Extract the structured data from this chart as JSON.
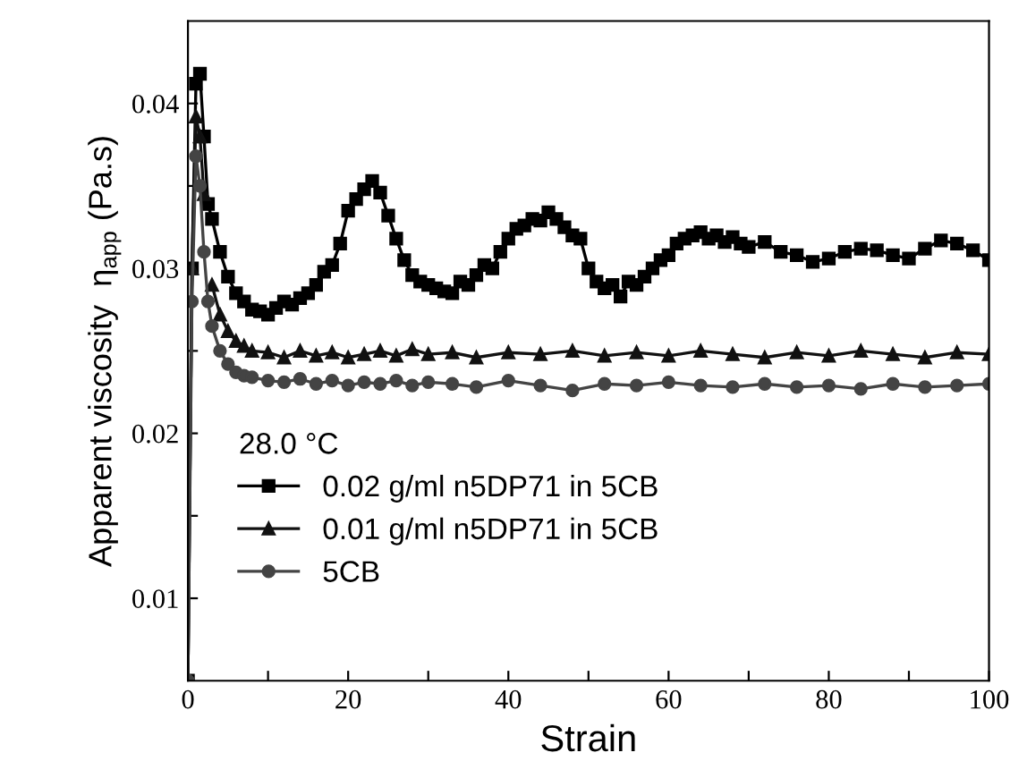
{
  "chart_data": {
    "type": "line",
    "xlabel": "Strain",
    "ylabel": "Apparent viscosity  η$_{app}$ (Pa.s)",
    "legend_title": "28.0 °C",
    "legend": "bottom left",
    "grid": false,
    "xlim": [
      0,
      100
    ],
    "xticks": [
      0,
      {
        "value": 10,
        "label": null
      },
      20,
      {
        "value": 30,
        "label": null
      },
      40,
      {
        "value": 50,
        "label": null
      },
      60,
      {
        "value": 70,
        "label": null
      },
      80,
      {
        "value": 90,
        "label": null
      },
      100
    ],
    "ylim": [
      0.005,
      0.045
    ],
    "yticks": [
      0.01,
      {
        "value": 0.015,
        "label": null
      },
      0.02,
      {
        "value": 0.025,
        "label": null
      },
      0.03,
      {
        "value": 0.035,
        "label": null
      },
      0.04
    ],
    "series": [
      {
        "name": "0.02 g/ml n5DP71 in 5CB",
        "color": "#000000",
        "marker": "square",
        "x": [
          0,
          0.5,
          1,
          1.5,
          2,
          2.5,
          3,
          4,
          5,
          6,
          7,
          8,
          9,
          10,
          11,
          12,
          13,
          14,
          15,
          16,
          17,
          18,
          19,
          20,
          21,
          22,
          23,
          24,
          25,
          26,
          27,
          28,
          29,
          30,
          31,
          32,
          33,
          34,
          35,
          36,
          37,
          38,
          39,
          40,
          41,
          42,
          43,
          44,
          45,
          46,
          47,
          48,
          49,
          50,
          51,
          52,
          53,
          54,
          55,
          56,
          57,
          58,
          59,
          60,
          61,
          62,
          63,
          64,
          65,
          66,
          67,
          68,
          69,
          70,
          72,
          74,
          76,
          78,
          80,
          82,
          84,
          86,
          88,
          90,
          92,
          94,
          96,
          98,
          100
        ],
        "values": [
          0.005,
          0.03,
          0.0412,
          0.0418,
          0.038,
          0.0339,
          0.033,
          0.031,
          0.0295,
          0.0285,
          0.028,
          0.0275,
          0.0274,
          0.0272,
          0.0276,
          0.028,
          0.0278,
          0.0282,
          0.0285,
          0.029,
          0.0298,
          0.0302,
          0.0315,
          0.0335,
          0.0342,
          0.0348,
          0.0353,
          0.0346,
          0.0332,
          0.0318,
          0.0305,
          0.0296,
          0.0292,
          0.029,
          0.0288,
          0.0286,
          0.0285,
          0.0292,
          0.029,
          0.0296,
          0.0302,
          0.03,
          0.031,
          0.0318,
          0.0324,
          0.0326,
          0.033,
          0.0329,
          0.0334,
          0.033,
          0.0325,
          0.032,
          0.0318,
          0.03,
          0.0292,
          0.0288,
          0.029,
          0.0283,
          0.0292,
          0.029,
          0.0295,
          0.03,
          0.0305,
          0.0308,
          0.0315,
          0.0318,
          0.032,
          0.0322,
          0.0318,
          0.032,
          0.0316,
          0.0319,
          0.0315,
          0.0313,
          0.0316,
          0.031,
          0.0308,
          0.0304,
          0.0306,
          0.031,
          0.0312,
          0.0311,
          0.0308,
          0.0306,
          0.0312,
          0.0317,
          0.0315,
          0.0311,
          0.0305
        ]
      },
      {
        "name": "0.01 g/ml n5DP71 in 5CB",
        "color": "#111111",
        "marker": "triangle",
        "x": [
          0,
          0.5,
          1,
          1.5,
          2,
          2.5,
          3,
          4,
          5,
          6,
          7,
          8,
          10,
          12,
          14,
          16,
          18,
          20,
          22,
          24,
          26,
          28,
          30,
          33,
          36,
          40,
          44,
          48,
          52,
          56,
          60,
          64,
          68,
          72,
          76,
          80,
          84,
          88,
          92,
          96,
          100
        ],
        "values": [
          0.005,
          0.03,
          0.0392,
          0.038,
          0.0345,
          null,
          0.029,
          0.0272,
          0.0262,
          0.0256,
          0.0253,
          0.025,
          0.0249,
          0.0246,
          0.025,
          0.0247,
          0.0249,
          0.0246,
          0.0248,
          0.025,
          0.0247,
          0.0251,
          0.0248,
          0.0249,
          0.0246,
          0.0249,
          0.0248,
          0.025,
          0.0247,
          0.0249,
          0.0247,
          0.025,
          0.0248,
          0.0246,
          0.0249,
          0.0247,
          0.025,
          0.0248,
          0.0246,
          0.0249,
          0.0248
        ]
      },
      {
        "name": "5CB",
        "color": "#444444",
        "marker": "circle",
        "x": [
          0,
          0.5,
          1,
          1.5,
          2,
          2.5,
          3,
          4,
          5,
          6,
          7,
          8,
          10,
          12,
          14,
          16,
          18,
          20,
          22,
          24,
          26,
          28,
          30,
          33,
          36,
          40,
          44,
          48,
          52,
          56,
          60,
          64,
          68,
          72,
          76,
          80,
          84,
          88,
          92,
          96,
          100
        ],
        "values": [
          0.005,
          0.028,
          0.0368,
          0.035,
          0.031,
          0.028,
          0.0265,
          0.025,
          0.0242,
          0.0237,
          0.0235,
          0.0234,
          0.0232,
          0.0231,
          0.0233,
          0.023,
          0.0232,
          0.0229,
          0.0231,
          0.023,
          0.0232,
          0.0229,
          0.0231,
          0.023,
          0.0228,
          0.0232,
          0.0229,
          0.0226,
          0.023,
          0.0229,
          0.0231,
          0.0229,
          0.0228,
          0.023,
          0.0228,
          0.0229,
          0.0227,
          0.023,
          0.0228,
          0.0229,
          0.023
        ]
      }
    ]
  }
}
